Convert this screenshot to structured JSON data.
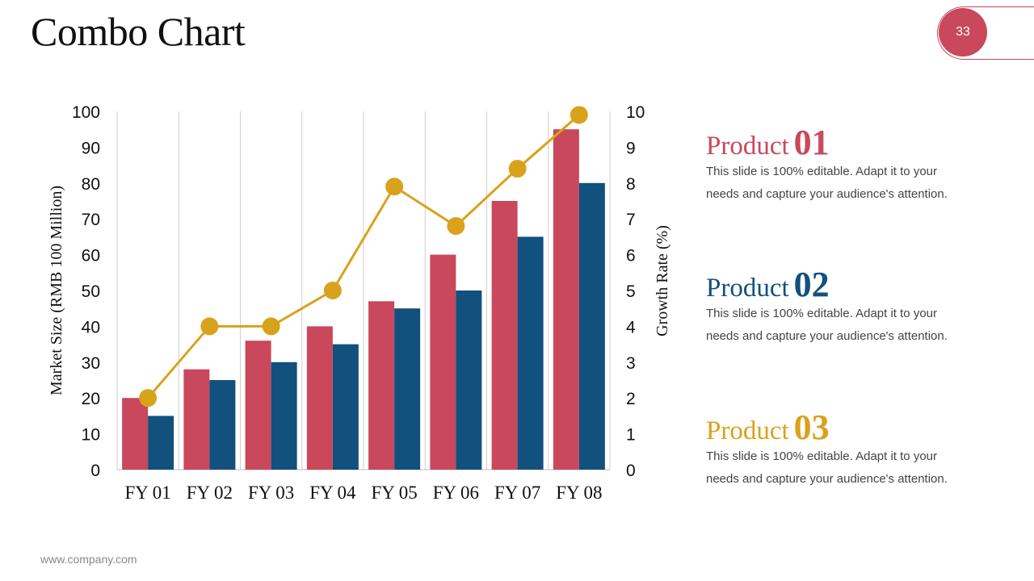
{
  "slide": {
    "title": "Combo Chart",
    "page_number": "33",
    "footer": "www.company.com",
    "accent_color": "#c9485b"
  },
  "products": [
    {
      "word": "Product",
      "number": "01",
      "color": "#c9485b",
      "desc_line1": "This slide is 100% editable. Adapt it to your",
      "desc_line2": "needs and capture your audience's attention."
    },
    {
      "word": "Product",
      "number": "02",
      "color": "#12507e",
      "desc_line1": "This slide is 100% editable. Adapt it to your",
      "desc_line2": "needs and capture your audience's attention."
    },
    {
      "word": "Product",
      "number": "03",
      "color": "#d9a21b",
      "desc_line1": "This slide is 100% editable. Adapt it to your",
      "desc_line2": "needs and capture your audience's attention."
    }
  ],
  "chart_data": {
    "type": "bar",
    "categories": [
      "FY 01",
      "FY 02",
      "FY 03",
      "FY 04",
      "FY 05",
      "FY 06",
      "FY 07",
      "FY 08"
    ],
    "series": [
      {
        "name": "",
        "type": "bar",
        "axis": "left",
        "color": "#c9485b",
        "values": [
          20,
          28,
          36,
          40,
          47,
          60,
          75,
          95
        ]
      },
      {
        "name": "",
        "type": "bar",
        "axis": "left",
        "color": "#12507e",
        "values": [
          15,
          25,
          30,
          35,
          45,
          50,
          65,
          80
        ]
      },
      {
        "name": "",
        "type": "line",
        "axis": "right",
        "color": "#d9a21b",
        "values": [
          2,
          4,
          4,
          5,
          7.9,
          6.8,
          8.4,
          9.9
        ]
      }
    ],
    "ylabel": "Market Size (RMB 100 Million)",
    "y2label": "Growth Rate (%)",
    "ylim": [
      0,
      100
    ],
    "y2lim": [
      0,
      10
    ],
    "yticks": [
      "0",
      "10",
      "20",
      "30",
      "40",
      "50",
      "60",
      "70",
      "80",
      "90",
      "100"
    ],
    "y2ticks": [
      "0",
      "1",
      "2",
      "3",
      "4",
      "5",
      "6",
      "7",
      "8",
      "9",
      "10"
    ],
    "grid": "vertical"
  }
}
